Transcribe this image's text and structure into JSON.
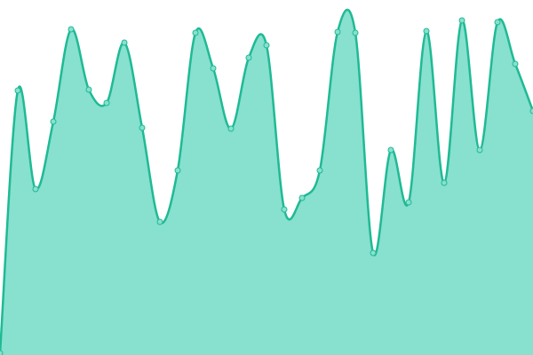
{
  "chart_data": {
    "type": "area",
    "values": [
      2,
      298,
      187,
      263,
      367,
      299,
      284,
      352,
      256,
      150,
      208,
      363,
      323,
      255,
      335,
      349,
      164,
      177,
      208,
      364,
      363,
      115,
      231,
      172,
      365,
      194,
      377,
      231,
      375,
      328,
      275
    ],
    "color": "#1fba94",
    "fill": "#88e0cf"
  }
}
